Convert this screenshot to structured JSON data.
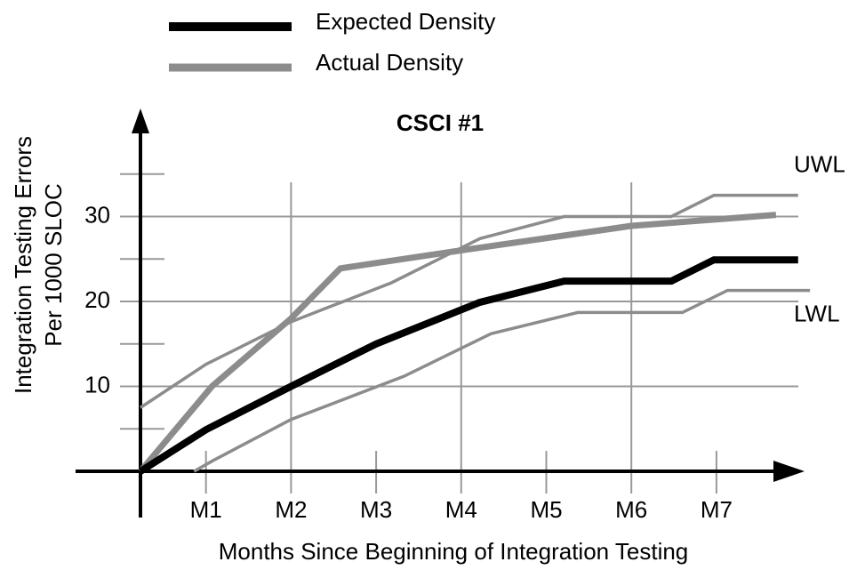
{
  "chart_data": {
    "type": "line",
    "title": "CSCI #1",
    "x_label": "Months Since Beginning of Integration Testing",
    "y_label": [
      "Integration Testing Errors",
      "Per 1000 SLOC"
    ],
    "xlim": [
      0,
      8
    ],
    "ylim": [
      0,
      40
    ],
    "xticks": [
      {
        "value": 1,
        "label": "M1"
      },
      {
        "value": 2,
        "label": "M2"
      },
      {
        "value": 3,
        "label": "M3"
      },
      {
        "value": 4,
        "label": "M4"
      },
      {
        "value": 5,
        "label": "M5"
      },
      {
        "value": 6,
        "label": "M6"
      },
      {
        "value": 7,
        "label": "M7"
      }
    ],
    "yticks": [
      10,
      20,
      30
    ],
    "minor_yticks": [
      5,
      15,
      25,
      35
    ],
    "grid": true,
    "series": [
      {
        "name": "Expected Density",
        "color": "#000000",
        "width": 8,
        "legend": true,
        "x": [
          0.23,
          1,
          2,
          3,
          4.22,
          5.21,
          6.47,
          6.97,
          7.96
        ],
        "values": [
          0,
          4.9,
          10,
          15,
          19.9,
          22.4,
          22.4,
          24.9,
          24.9
        ]
      },
      {
        "name": "Actual Density",
        "color": "#8c8c8c",
        "width": 7,
        "legend": true,
        "x": [
          0.23,
          1.07,
          2,
          2.58,
          3.99,
          6,
          7.7
        ],
        "values": [
          0,
          10,
          18,
          23.9,
          26,
          28.9,
          30.2
        ]
      },
      {
        "name": "UWL",
        "color": "#8c8c8c",
        "width": 3.5,
        "legend": false,
        "x": [
          0.23,
          1,
          2,
          3.18,
          4.22,
          5.21,
          6.47,
          6.97,
          7.96
        ],
        "values": [
          7.5,
          12.6,
          17.6,
          22.2,
          27.4,
          30,
          30,
          32.5,
          32.5
        ]
      },
      {
        "name": "LWL",
        "color": "#8c8c8c",
        "width": 3.5,
        "legend": false,
        "x": [
          0.86,
          1.09,
          2,
          3.33,
          4.35,
          5.37,
          6.6,
          7.13,
          8.1
        ],
        "values": [
          0,
          1.3,
          6.1,
          11.2,
          16.2,
          18.7,
          18.7,
          21.3,
          21.3
        ]
      }
    ]
  }
}
